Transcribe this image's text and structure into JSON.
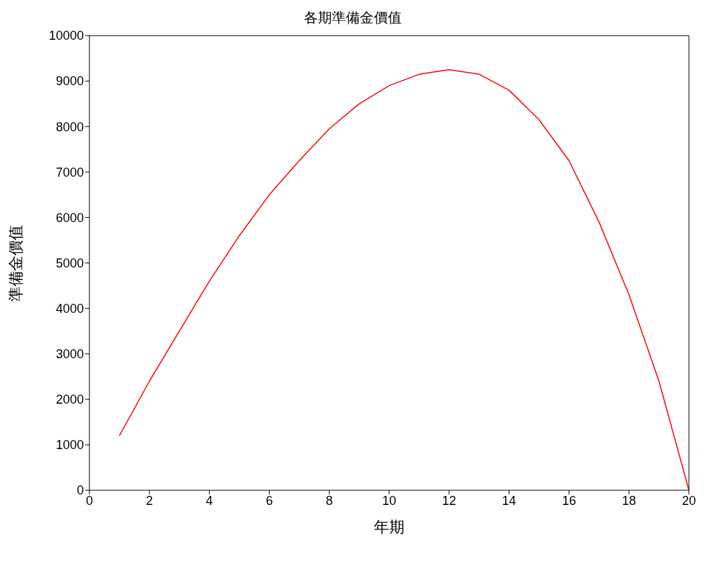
{
  "chart_data": {
    "type": "line",
    "title": "各期準備金價值",
    "xlabel": "年期",
    "ylabel": "準備金價值",
    "x": [
      1,
      2,
      3,
      4,
      5,
      6,
      7,
      8,
      9,
      10,
      11,
      12,
      13,
      14,
      15,
      16,
      17,
      18,
      19,
      20
    ],
    "series": [
      {
        "color": "#ff0000",
        "values": [
          1200,
          2400,
          3500,
          4600,
          5600,
          6500,
          7250,
          7950,
          8500,
          8900,
          9150,
          9250,
          9150,
          8800,
          8150,
          7250,
          5900,
          4300,
          2400,
          0
        ]
      }
    ],
    "xlim": [
      0,
      20
    ],
    "xticks": [
      0,
      2,
      4,
      6,
      8,
      10,
      12,
      14,
      16,
      18,
      20
    ],
    "ylim": [
      0,
      10000
    ],
    "yticks": [
      0,
      1000,
      2000,
      3000,
      4000,
      5000,
      6000,
      7000,
      8000,
      9000,
      10000
    ],
    "grid": false,
    "legend": false,
    "marker": "none",
    "line_style": "solid"
  }
}
